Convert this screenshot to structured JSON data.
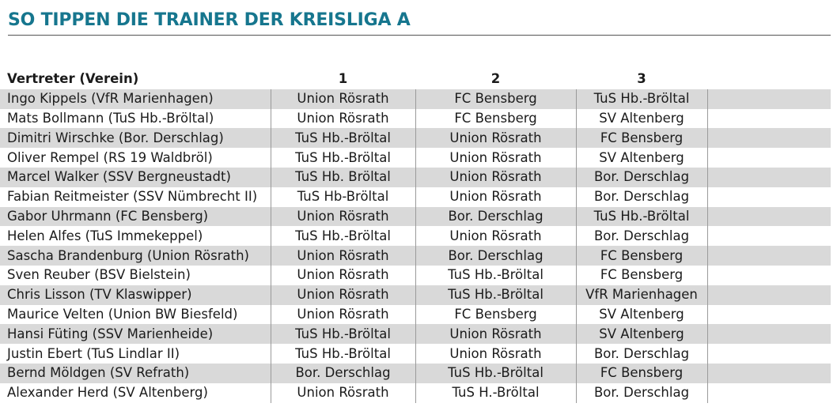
{
  "title": "SO TIPPEN DIE TRAINER DER KREISLIGA A",
  "table": {
    "headers": [
      "Vertreter (Verein)",
      "1",
      "2",
      "3"
    ],
    "rows": [
      [
        "Ingo Kippels (VfR Marienhagen)",
        "Union Rösrath",
        "FC Bensberg",
        "TuS Hb.-Bröltal"
      ],
      [
        "Mats Bollmann (TuS Hb.-Bröltal)",
        "Union Rösrath",
        "FC Bensberg",
        "SV Altenberg"
      ],
      [
        "Dimitri Wirschke (Bor. Derschlag)",
        "TuS Hb.-Bröltal",
        "Union Rösrath",
        "FC Bensberg"
      ],
      [
        "Oliver Rempel (RS 19 Waldbröl)",
        "TuS Hb.-Bröltal",
        "Union Rösrath",
        "SV Altenberg"
      ],
      [
        "Marcel Walker (SSV Bergneustadt)",
        "TuS Hb. Bröltal",
        "Union Rösrath",
        "Bor. Derschlag"
      ],
      [
        "Fabian Reitmeister (SSV Nümbrecht II)",
        "TuS Hb-Bröltal",
        "Union Rösrath",
        "Bor. Derschlag"
      ],
      [
        "Gabor Uhrmann (FC Bensberg)",
        "Union Rösrath",
        "Bor. Derschlag",
        "TuS Hb.-Bröltal"
      ],
      [
        "Helen Alfes (TuS Immekeppel)",
        "TuS Hb.-Bröltal",
        "Union Rösrath",
        "Bor. Derschlag"
      ],
      [
        "Sascha Brandenburg (Union Rösrath)",
        "Union Rösrath",
        "Bor. Derschlag",
        "FC Bensberg"
      ],
      [
        "Sven Reuber (BSV Bielstein)",
        "Union Rösrath",
        "TuS Hb.-Bröltal",
        "FC Bensberg"
      ],
      [
        "Chris Lisson (TV Klaswipper)",
        "Union Rösrath",
        "TuS Hb.-Bröltal",
        "VfR Marienhagen"
      ],
      [
        "Maurice Velten (Union BW Biesfeld)",
        "Union Rösrath",
        "FC Bensberg",
        "SV Altenberg"
      ],
      [
        "Hansi Füting (SSV Marienheide)",
        "TuS Hb.-Bröltal",
        "Union Rösrath",
        "SV Altenberg"
      ],
      [
        "Justin Ebert (TuS Lindlar II)",
        "TuS Hb.-Bröltal",
        "Union Rösrath",
        "Bor. Derschlag"
      ],
      [
        "Bernd Möldgen (SV Refrath)",
        "Bor. Derschlag",
        "TuS Hb.-Bröltal",
        "FC Bensberg"
      ],
      [
        "Alexander Herd (SV Altenberg)",
        "Union Rösrath",
        "TuS H.-Bröltal",
        "Bor. Derschlag"
      ]
    ]
  }
}
